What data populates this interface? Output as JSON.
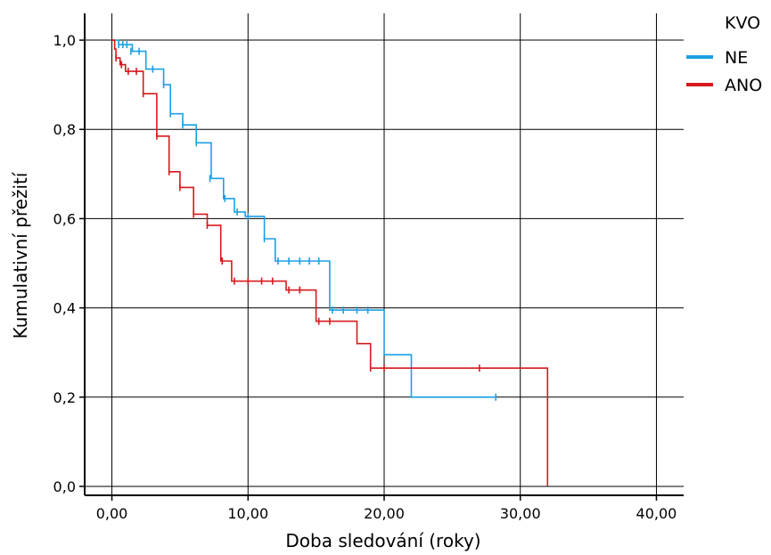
{
  "chart_data": {
    "type": "line",
    "subtype": "step (Kaplan-Meier survival)",
    "title": "",
    "xlabel": "Doba sledování (roky)",
    "ylabel": "Kumulativní přežití",
    "xlim": [
      -2,
      42
    ],
    "ylim": [
      -0.02,
      1.06
    ],
    "x_ticks": [
      0,
      10,
      20,
      30,
      40
    ],
    "x_tick_labels": [
      "0,00",
      "10,00",
      "20,00",
      "30,00",
      "40,00"
    ],
    "y_ticks": [
      0,
      0.2,
      0.4,
      0.6,
      0.8,
      1.0
    ],
    "y_tick_labels": [
      "0,0",
      "0,2",
      "0,4",
      "0,6",
      "0,8",
      "1,0"
    ],
    "grid": true,
    "legend": {
      "title": "KVO",
      "position": "top-right outside"
    },
    "series": [
      {
        "name": "NE",
        "color": "#1BA1E2",
        "steps": [
          [
            0,
            1.0
          ],
          [
            0.5,
            0.99
          ],
          [
            1.5,
            0.975
          ],
          [
            2.5,
            0.935
          ],
          [
            3.0,
            0.935
          ],
          [
            3.8,
            0.9
          ],
          [
            4.3,
            0.835
          ],
          [
            5.2,
            0.81
          ],
          [
            6.2,
            0.77
          ],
          [
            7.3,
            0.69
          ],
          [
            8.2,
            0.645
          ],
          [
            9.0,
            0.615
          ],
          [
            9.8,
            0.605
          ],
          [
            11.2,
            0.555
          ],
          [
            12.0,
            0.505
          ],
          [
            16.0,
            0.395
          ],
          [
            20.0,
            0.295
          ],
          [
            22.0,
            0.2
          ],
          [
            28.2,
            0.2
          ]
        ],
        "censored": [
          [
            0.5,
            0.99
          ],
          [
            0.8,
            0.99
          ],
          [
            1.1,
            0.99
          ],
          [
            1.4,
            0.975
          ],
          [
            2.0,
            0.975
          ],
          [
            3.0,
            0.935
          ],
          [
            3.8,
            0.9
          ],
          [
            4.3,
            0.835
          ],
          [
            5.2,
            0.81
          ],
          [
            6.2,
            0.77
          ],
          [
            7.2,
            0.69
          ],
          [
            8.3,
            0.645
          ],
          [
            9.2,
            0.615
          ],
          [
            10.0,
            0.605
          ],
          [
            11.2,
            0.555
          ],
          [
            12.2,
            0.505
          ],
          [
            13.0,
            0.505
          ],
          [
            13.8,
            0.505
          ],
          [
            14.5,
            0.505
          ],
          [
            15.2,
            0.505
          ],
          [
            16.2,
            0.395
          ],
          [
            17.0,
            0.395
          ],
          [
            18.0,
            0.395
          ],
          [
            18.8,
            0.395
          ],
          [
            28.2,
            0.2
          ]
        ]
      },
      {
        "name": "ANO",
        "color": "#D7191C",
        "steps": [
          [
            0,
            1.0
          ],
          [
            0.2,
            0.98
          ],
          [
            0.3,
            0.96
          ],
          [
            0.6,
            0.945
          ],
          [
            1.0,
            0.93
          ],
          [
            2.3,
            0.88
          ],
          [
            3.3,
            0.785
          ],
          [
            4.2,
            0.705
          ],
          [
            5.0,
            0.67
          ],
          [
            6.0,
            0.61
          ],
          [
            7.0,
            0.585
          ],
          [
            8.0,
            0.505
          ],
          [
            8.8,
            0.46
          ],
          [
            12.8,
            0.44
          ],
          [
            15.0,
            0.37
          ],
          [
            18.0,
            0.32
          ],
          [
            19.0,
            0.265
          ],
          [
            32.0,
            0.0
          ]
        ],
        "censored": [
          [
            0.3,
            0.96
          ],
          [
            0.7,
            0.945
          ],
          [
            1.2,
            0.93
          ],
          [
            1.8,
            0.93
          ],
          [
            2.3,
            0.88
          ],
          [
            3.3,
            0.785
          ],
          [
            4.2,
            0.705
          ],
          [
            5.0,
            0.67
          ],
          [
            6.0,
            0.61
          ],
          [
            7.0,
            0.585
          ],
          [
            8.1,
            0.505
          ],
          [
            9.0,
            0.46
          ],
          [
            10.0,
            0.46
          ],
          [
            11.0,
            0.46
          ],
          [
            11.8,
            0.46
          ],
          [
            13.0,
            0.44
          ],
          [
            13.8,
            0.44
          ],
          [
            15.2,
            0.37
          ],
          [
            16.0,
            0.37
          ],
          [
            19.0,
            0.265
          ],
          [
            20.0,
            0.265
          ],
          [
            27.0,
            0.265
          ]
        ]
      }
    ]
  }
}
